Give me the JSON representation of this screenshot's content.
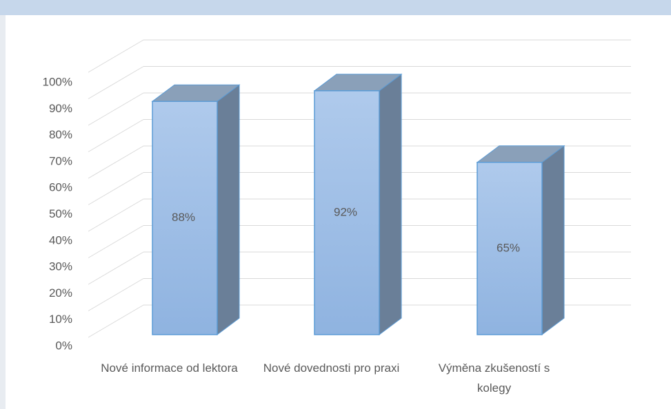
{
  "chart_data": {
    "type": "bar3d",
    "categories": [
      "Nové informace od lektora",
      "Nové dovednosti pro praxi",
      "Výměna zkušeností s kolegy"
    ],
    "values": [
      88,
      92,
      65
    ],
    "value_labels": [
      "88%",
      "92%",
      "65%"
    ],
    "color": "#9dbde6",
    "ylim": [
      0,
      100
    ],
    "yticks": [
      {
        "value": 0,
        "label": "0%"
      },
      {
        "value": 10,
        "label": "10%"
      },
      {
        "value": 20,
        "label": "20%"
      },
      {
        "value": 30,
        "label": "30%"
      },
      {
        "value": 40,
        "label": "40%"
      },
      {
        "value": 50,
        "label": "50%"
      },
      {
        "value": 60,
        "label": "60%"
      },
      {
        "value": 70,
        "label": "70%"
      },
      {
        "value": 80,
        "label": "80%"
      },
      {
        "value": 90,
        "label": "90%"
      },
      {
        "value": 100,
        "label": "100%"
      }
    ],
    "grid": true
  }
}
